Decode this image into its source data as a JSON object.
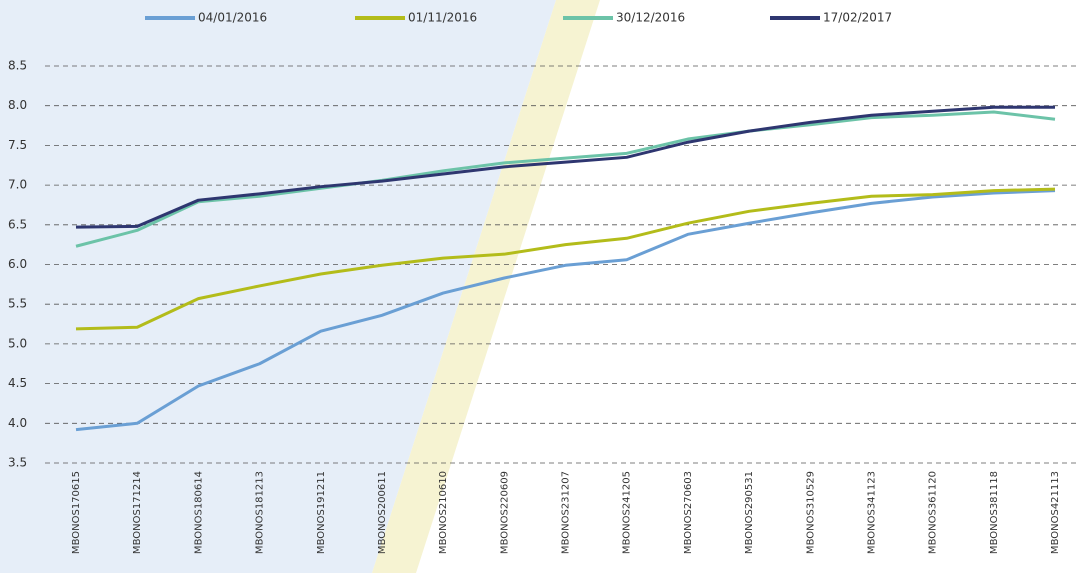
{
  "chart_data": {
    "type": "line",
    "categories": [
      "MBONOS170615",
      "MBONOS171214",
      "MBONOS180614",
      "MBONOS181213",
      "MBONOS191211",
      "MBONOS200611",
      "MBONOS210610",
      "MBONOS220609",
      "MBONOS231207",
      "MBONOS241205",
      "MBONOS270603",
      "MBONOS290531",
      "MBONOS310529",
      "MBONOS341123",
      "MBONOS361120",
      "MBONOS381118",
      "MBONOS421113"
    ],
    "series": [
      {
        "name": "04/01/2016",
        "color": "#6a9fd4",
        "values": [
          3.92,
          4.0,
          4.47,
          4.75,
          5.16,
          5.36,
          5.64,
          5.83,
          5.99,
          6.06,
          6.38,
          6.52,
          6.65,
          6.77,
          6.85,
          6.9,
          6.93
        ]
      },
      {
        "name": "01/11/2016",
        "color": "#b3bc1a",
        "values": [
          5.19,
          5.21,
          5.57,
          5.73,
          5.88,
          5.99,
          6.08,
          6.13,
          6.25,
          6.33,
          6.52,
          6.67,
          6.77,
          6.86,
          6.88,
          6.93,
          6.95
        ]
      },
      {
        "name": "30/12/2016",
        "color": "#6cc3a8",
        "values": [
          6.23,
          6.43,
          6.79,
          6.86,
          6.96,
          7.06,
          7.18,
          7.28,
          7.34,
          7.4,
          7.58,
          7.68,
          7.76,
          7.85,
          7.88,
          7.92,
          7.83
        ]
      },
      {
        "name": "17/02/2017",
        "color": "#2e3670",
        "values": [
          6.47,
          6.48,
          6.81,
          6.89,
          6.98,
          7.05,
          7.14,
          7.23,
          7.29,
          7.35,
          7.54,
          7.68,
          7.79,
          7.88,
          7.93,
          7.98,
          7.98
        ]
      }
    ],
    "ylim": [
      3.5,
      8.5
    ],
    "yticks": [
      3.5,
      {
        "value": 4,
        "label": "4.0"
      },
      4.5,
      {
        "value": 5,
        "label": "5.0"
      },
      5.5,
      {
        "value": 6,
        "label": "6.0"
      },
      6.5,
      {
        "value": 7,
        "label": "7.0"
      },
      7.5,
      {
        "value": 8,
        "label": "8.0"
      },
      8.5
    ],
    "grid": true
  }
}
